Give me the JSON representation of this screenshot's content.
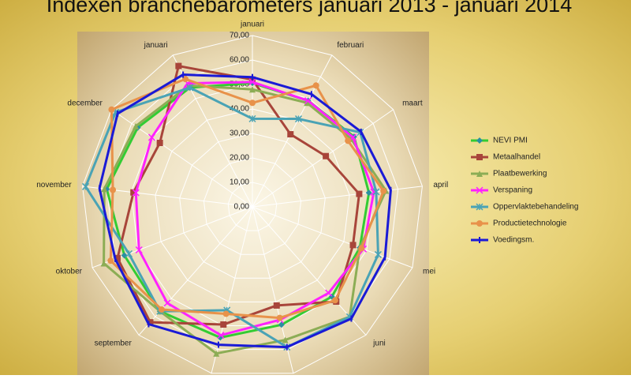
{
  "chart_data": {
    "type": "radar",
    "title": "Indexen branchebarometers januari 2013 - januari 2014",
    "categories": [
      "januari",
      "februari",
      "maart",
      "april",
      "mei",
      "juni",
      null,
      null,
      "september",
      "oktober",
      "november",
      "december",
      "januari"
    ],
    "ylim": [
      0,
      70
    ],
    "yticks": [
      {
        "value": 0,
        "label": "0,00"
      },
      {
        "value": 10,
        "label": "10,00"
      },
      {
        "value": 20,
        "label": "20,00"
      },
      {
        "value": 30,
        "label": "30,00"
      },
      {
        "value": 40,
        "label": "40,00"
      },
      {
        "value": 50,
        "label": "50,00"
      },
      {
        "value": 60,
        "label": "60,00"
      },
      {
        "value": 70,
        "label": "70,00"
      }
    ],
    "grid": true,
    "legend": "right",
    "series": [
      {
        "name": "NEVI PMI",
        "color": "#33cc33",
        "marker": "diamond",
        "marker_color": "#2a8fa0",
        "values": [
          50.6,
          49,
          50.5,
          48,
          47,
          49,
          49.6,
          55,
          57,
          56,
          60,
          57,
          55
        ]
      },
      {
        "name": "Metaalhandel",
        "color": "#a8453a",
        "marker": "square",
        "marker_color": "#a8453a",
        "values": [
          52,
          33.5,
          36.5,
          44,
          44,
          51.7,
          41.5,
          49.5,
          63,
          59,
          49,
          46,
          65
        ]
      },
      {
        "name": "Plaatbewerking",
        "color": "#8cad55",
        "marker": "triangle",
        "marker_color": "#8cad55",
        "values": [
          48,
          48,
          49,
          55,
          47,
          60,
          56,
          61.7,
          57,
          65,
          61,
          58,
          56
        ]
      },
      {
        "name": "Verspaning",
        "color": "#ff22ff",
        "marker": "x",
        "marker_color": "#ff22ff",
        "values": [
          51,
          49,
          50,
          50,
          48.5,
          47,
          47.5,
          54,
          52.5,
          49.6,
          48,
          50,
          57
        ]
      },
      {
        "name": "Oppervlaktebehandeling",
        "color": "#4aa3b5",
        "marker": "star",
        "marker_color": "#4aa3b5",
        "values": [
          36,
          40.6,
          53.6,
          51,
          55,
          60,
          59,
          43.5,
          57,
          54,
          68.7,
          68,
          55
        ]
      },
      {
        "name": "Productietechnologie",
        "color": "#e8924a",
        "marker": "circle",
        "marker_color": "#e8924a",
        "values": [
          42.5,
          56,
          47.5,
          54,
          47.7,
          51,
          46.7,
          45,
          56,
          62,
          57.5,
          70,
          59
        ]
      },
      {
        "name": "Voedingsm.",
        "color": "#1a1ad6",
        "marker": "bar",
        "marker_color": "#1a1ad6",
        "values": [
          53,
          52,
          54,
          57,
          58,
          61,
          59,
          58,
          64,
          60,
          63,
          67,
          61
        ]
      }
    ]
  }
}
